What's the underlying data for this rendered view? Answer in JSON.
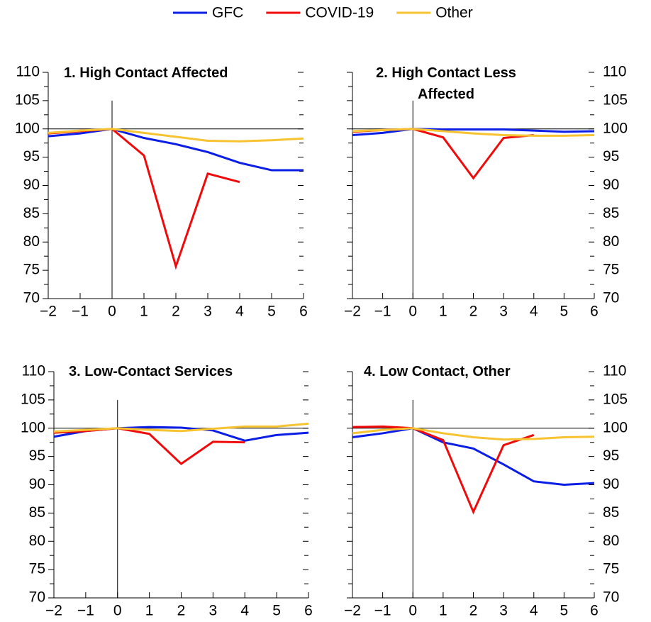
{
  "chart_data": [
    {
      "type": "line",
      "title": "1. High Contact Affected",
      "ytick_side": "left",
      "x": [
        -2,
        -1,
        0,
        1,
        2,
        3,
        4,
        5,
        6
      ],
      "xlim": [
        -2,
        6
      ],
      "xticks": [
        {
          "value": -2,
          "label": "−2"
        },
        {
          "value": -1,
          "label": "−1"
        },
        0,
        1,
        2,
        3,
        4,
        5,
        6
      ],
      "ylim": [
        70,
        110
      ],
      "yticks": [
        70,
        75,
        80,
        85,
        90,
        95,
        100,
        105,
        110
      ],
      "series": [
        {
          "name": "GFC",
          "color": "#0a1ee6",
          "values": [
            98.7,
            99.2,
            100,
            98.4,
            97.3,
            95.9,
            94.0,
            92.7,
            92.7
          ]
        },
        {
          "name": "COVID-19",
          "color": "#f00a0a",
          "values": [
            99.2,
            99.6,
            100,
            95.3,
            75.7,
            92.1,
            90.6,
            null,
            null
          ]
        },
        {
          "name": "Other",
          "color": "#f7c331",
          "values": [
            99.3,
            99.7,
            100,
            99.3,
            98.6,
            97.9,
            97.8,
            98.0,
            98.3
          ]
        }
      ]
    },
    {
      "type": "line",
      "title": "2. High Contact Less Affected",
      "ytick_side": "right",
      "x": [
        -2,
        -1,
        0,
        1,
        2,
        3,
        4,
        5,
        6
      ],
      "xlim": [
        -2,
        6
      ],
      "xticks": [
        {
          "value": -2,
          "label": "−2"
        },
        {
          "value": -1,
          "label": "−1"
        },
        0,
        1,
        2,
        3,
        4,
        5,
        6
      ],
      "ylim": [
        70,
        110
      ],
      "yticks": [
        70,
        75,
        80,
        85,
        90,
        95,
        100,
        105,
        110
      ],
      "series": [
        {
          "name": "GFC",
          "color": "#0a1ee6",
          "values": [
            98.9,
            99.3,
            100,
            99.9,
            99.9,
            99.9,
            99.7,
            99.5,
            99.6
          ]
        },
        {
          "name": "COVID-19",
          "color": "#f00a0a",
          "values": [
            99.5,
            99.8,
            100,
            98.5,
            91.3,
            98.4,
            98.9,
            null,
            null
          ]
        },
        {
          "name": "Other",
          "color": "#f7c331",
          "values": [
            99.6,
            99.8,
            100,
            99.6,
            99.2,
            98.9,
            98.8,
            98.8,
            98.9
          ]
        }
      ]
    },
    {
      "type": "line",
      "title": "3. Low-Contact Services",
      "ytick_side": "left",
      "x": [
        -2,
        -1,
        0,
        1,
        2,
        3,
        4,
        5,
        6
      ],
      "xlim": [
        -2,
        6
      ],
      "xticks": [
        {
          "value": -2,
          "label": "−2"
        },
        {
          "value": -1,
          "label": "−1"
        },
        0,
        1,
        2,
        3,
        4,
        5,
        6
      ],
      "ylim": [
        70,
        110
      ],
      "yticks": [
        70,
        75,
        80,
        85,
        90,
        95,
        100,
        105,
        110
      ],
      "series": [
        {
          "name": "GFC",
          "color": "#0a1ee6",
          "values": [
            98.5,
            99.5,
            100,
            100.2,
            100.1,
            99.6,
            97.8,
            98.8,
            99.2
          ]
        },
        {
          "name": "COVID-19",
          "color": "#f00a0a",
          "values": [
            99.2,
            99.5,
            100,
            99.0,
            93.7,
            97.6,
            97.5,
            null,
            null
          ]
        },
        {
          "name": "Other",
          "color": "#f7c331",
          "values": [
            99.4,
            99.7,
            100,
            99.7,
            99.5,
            99.9,
            100.3,
            100.3,
            100.8
          ]
        }
      ]
    },
    {
      "type": "line",
      "title": "4. Low Contact, Other",
      "ytick_side": "right",
      "x": [
        -2,
        -1,
        0,
        1,
        2,
        3,
        4,
        5,
        6
      ],
      "xlim": [
        -2,
        6
      ],
      "xticks": [
        {
          "value": -2,
          "label": "−2"
        },
        {
          "value": -1,
          "label": "−1"
        },
        0,
        1,
        2,
        3,
        4,
        5,
        6
      ],
      "ylim": [
        70,
        110
      ],
      "yticks": [
        70,
        75,
        80,
        85,
        90,
        95,
        100,
        105,
        110
      ],
      "series": [
        {
          "name": "GFC",
          "color": "#0a1ee6",
          "values": [
            98.4,
            99.1,
            100,
            97.5,
            96.4,
            93.6,
            90.6,
            90.0,
            90.3
          ]
        },
        {
          "name": "COVID-19",
          "color": "#f00a0a",
          "values": [
            100.2,
            100.3,
            100,
            97.9,
            85.2,
            97.0,
            98.8,
            null,
            null
          ]
        },
        {
          "name": "Other",
          "color": "#f7c331",
          "values": [
            99.1,
            99.7,
            100,
            99.1,
            98.4,
            98.0,
            98.1,
            98.4,
            98.5
          ]
        }
      ]
    }
  ]
}
